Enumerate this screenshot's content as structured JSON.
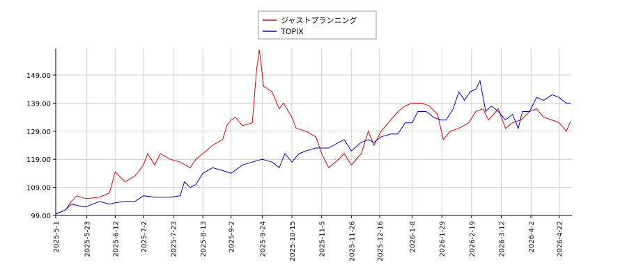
{
  "chart_data": {
    "type": "line",
    "xlim": [
      "2025-5-1",
      "2026-5-1"
    ],
    "xticks": [
      "2025-5-1",
      "2025-5-23",
      "2025-6-12",
      "2025-7-2",
      "2025-7-23",
      "2025-8-13",
      "2025-9-2",
      "2025-9-24",
      "2025-10-15",
      "2025-11-5",
      "2025-11-26",
      "2025-12-16",
      "2026-1-8",
      "2026-1-29",
      "2026-2-19",
      "2026-3-12",
      "2026-4-2",
      "2026-4-22"
    ],
    "ylim": [
      99,
      158.4
    ],
    "yticks": [
      {
        "value": 99,
        "label": "99.00"
      },
      {
        "value": 109,
        "label": "109.00"
      },
      {
        "value": 119,
        "label": "119.00"
      },
      {
        "value": 129,
        "label": "129.00"
      },
      {
        "value": 139,
        "label": "139.00"
      },
      {
        "value": 149,
        "label": "149.00"
      }
    ],
    "grid": true,
    "legend": "top",
    "series": [
      {
        "name": "ジャストプランニング",
        "color": "#dd0000",
        "x": [
          "2025-5-1",
          "2025-5-8",
          "2025-5-12",
          "2025-5-16",
          "2025-5-22",
          "2025-6-1",
          "2025-6-8",
          "2025-6-12",
          "2025-6-19",
          "2025-6-26",
          "2025-7-2",
          "2025-7-5",
          "2025-7-10",
          "2025-7-14",
          "2025-7-21",
          "2025-7-28",
          "2025-8-4",
          "2025-8-8",
          "2025-8-13",
          "2025-8-20",
          "2025-8-27",
          "2025-8-30",
          "2025-9-2",
          "2025-9-5",
          "2025-9-10",
          "2025-9-17",
          "2025-9-20",
          "2025-9-22",
          "2025-9-25",
          "2025-10-1",
          "2025-10-6",
          "2025-10-9",
          "2025-10-15",
          "2025-10-18",
          "2025-10-25",
          "2025-11-1",
          "2025-11-5",
          "2025-11-10",
          "2025-11-17",
          "2025-11-21",
          "2025-11-26",
          "2025-12-3",
          "2025-12-8",
          "2025-12-12",
          "2025-12-17",
          "2025-12-24",
          "2025-12-29",
          "2026-1-3",
          "2026-1-8",
          "2026-1-15",
          "2026-1-20",
          "2026-1-26",
          "2026-1-30",
          "2026-2-4",
          "2026-2-10",
          "2026-2-17",
          "2026-2-22",
          "2026-2-27",
          "2026-3-3",
          "2026-3-10",
          "2026-3-15",
          "2026-3-20",
          "2026-3-26",
          "2026-4-1",
          "2026-4-6",
          "2026-4-11",
          "2026-4-17",
          "2026-4-22",
          "2026-4-27",
          "2026-4-30"
        ],
        "values": [
          99.5,
          101,
          104,
          106,
          105,
          105.5,
          107,
          114.5,
          111,
          113,
          117,
          121,
          117,
          121,
          119,
          118,
          116,
          119,
          121,
          124,
          126,
          131,
          133,
          134,
          131,
          132,
          151,
          158,
          145,
          143,
          137,
          139,
          134,
          130,
          129,
          127,
          121,
          116,
          119,
          121,
          117,
          121,
          129,
          124,
          129,
          133,
          136,
          138,
          139,
          139,
          138,
          135,
          126,
          129,
          130,
          132,
          136,
          137,
          133,
          137,
          130,
          132,
          133,
          136,
          137,
          134,
          133,
          132,
          129,
          132.5
        ]
      },
      {
        "name": "TOPIX",
        "color": "#0000cc",
        "x": [
          "2025-5-1",
          "2025-5-8",
          "2025-5-12",
          "2025-5-22",
          "2025-6-1",
          "2025-6-8",
          "2025-6-12",
          "2025-6-19",
          "2025-6-26",
          "2025-7-2",
          "2025-7-10",
          "2025-7-21",
          "2025-7-28",
          "2025-7-31",
          "2025-8-4",
          "2025-8-8",
          "2025-8-13",
          "2025-8-20",
          "2025-8-27",
          "2025-9-2",
          "2025-9-10",
          "2025-9-17",
          "2025-9-24",
          "2025-10-1",
          "2025-10-6",
          "2025-10-10",
          "2025-10-15",
          "2025-10-20",
          "2025-10-25",
          "2025-11-1",
          "2025-11-5",
          "2025-11-10",
          "2025-11-17",
          "2025-11-21",
          "2025-11-26",
          "2025-12-3",
          "2025-12-8",
          "2025-12-12",
          "2025-12-17",
          "2025-12-24",
          "2025-12-29",
          "2026-1-3",
          "2026-1-8",
          "2026-1-12",
          "2026-1-18",
          "2026-1-23",
          "2026-1-28",
          "2026-2-1",
          "2026-2-6",
          "2026-2-10",
          "2026-2-14",
          "2026-2-18",
          "2026-2-22",
          "2026-2-25",
          "2026-3-1",
          "2026-3-5",
          "2026-3-10",
          "2026-3-15",
          "2026-3-20",
          "2026-3-24",
          "2026-3-27",
          "2026-4-1",
          "2026-4-6",
          "2026-4-11",
          "2026-4-17",
          "2026-4-22",
          "2026-4-27",
          "2026-4-30"
        ],
        "values": [
          99.5,
          101,
          103,
          102,
          104,
          103,
          103.5,
          104,
          104,
          106,
          105.5,
          105.5,
          106,
          111,
          109,
          110,
          114,
          116,
          115,
          114,
          117,
          118,
          119,
          118,
          116,
          121,
          118,
          121,
          122,
          123,
          123,
          123,
          125,
          126,
          122,
          125,
          126,
          125,
          127,
          128,
          128,
          132,
          132,
          136,
          136,
          134,
          133,
          133,
          137,
          143,
          140,
          143,
          144,
          147,
          136,
          138,
          136,
          133,
          135,
          130,
          136,
          136,
          141,
          140,
          142,
          141,
          139,
          139
        ]
      }
    ]
  }
}
